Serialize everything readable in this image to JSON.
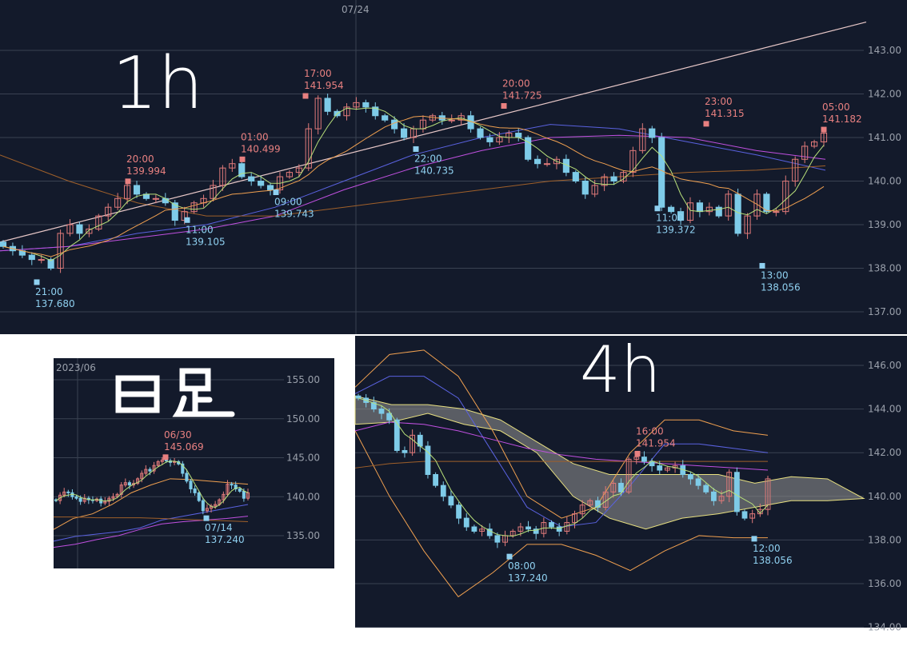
{
  "colors": {
    "background": "#131a2b",
    "grid": "#3a4252",
    "up_candle": "#e07a7a",
    "down_candle": "#7ecbe8",
    "high_label": "#e88080",
    "low_label": "#8fd0f0",
    "axis_text": "#9aa0ab",
    "ma_fast": "#b8e07a",
    "ma_mid": "#f0a050",
    "ma_blue": "#5a62e0",
    "ma_purple": "#c050e0",
    "ma_brown": "#a0602a",
    "trendline": "#e8c8c8",
    "cloud": "#8a8a8a",
    "cloud_edge": "#e8e080"
  },
  "chart_data": [
    {
      "type": "candlestick",
      "title": "1h",
      "date_label": "07/24",
      "yticks": [
        "143.00",
        "142.00",
        "141.00",
        "140.00",
        "139.00",
        "138.00",
        "137.00"
      ],
      "ylim": [
        136.6,
        144.2
      ],
      "closes": [
        138.5,
        138.4,
        138.3,
        138.2,
        138.2,
        138.0,
        138.8,
        139.0,
        138.8,
        138.9,
        139.2,
        139.4,
        139.6,
        139.9,
        139.7,
        139.6,
        139.6,
        139.5,
        139.1,
        139.3,
        139.5,
        139.6,
        139.9,
        140.3,
        140.4,
        140.1,
        140.0,
        139.9,
        139.8,
        140.1,
        140.2,
        140.3,
        141.2,
        141.9,
        141.6,
        141.5,
        141.7,
        141.8,
        141.7,
        141.5,
        141.4,
        141.2,
        141.0,
        141.2,
        141.4,
        141.5,
        141.4,
        141.4,
        141.5,
        141.2,
        141.0,
        140.9,
        141.0,
        141.1,
        141.0,
        140.5,
        140.4,
        140.4,
        140.5,
        140.2,
        140.0,
        139.7,
        139.9,
        140.1,
        140.0,
        140.2,
        140.7,
        141.2,
        141.0,
        139.4,
        139.3,
        139.1,
        139.5,
        139.3,
        139.4,
        139.2,
        139.7,
        138.8,
        139.2,
        139.7,
        139.3,
        139.3,
        140.0,
        140.5,
        140.8,
        140.9,
        141.1
      ],
      "ma_blue": [
        138.4,
        138.5,
        138.8,
        139.0,
        139.4,
        140.0,
        140.6,
        141.0,
        141.3,
        141.2,
        140.9,
        140.6,
        140.25
      ],
      "ma_purple": [
        138.4,
        138.5,
        138.7,
        138.9,
        139.2,
        139.8,
        140.3,
        140.7,
        141.0,
        141.05,
        141.0,
        140.7,
        140.5
      ],
      "ma_brown": [
        140.6,
        140.0,
        139.5,
        139.2,
        139.2,
        139.4,
        139.6,
        139.8,
        140.0,
        140.1,
        140.2,
        140.25,
        140.35
      ],
      "trendline": [
        138.6,
        143.65
      ],
      "annotations": [
        {
          "kind": "low",
          "time": "21:00",
          "price": "137.680"
        },
        {
          "kind": "high",
          "time": "20:00",
          "price": "139.994"
        },
        {
          "kind": "low",
          "time": "11:00",
          "price": "139.105"
        },
        {
          "kind": "high",
          "time": "01:00",
          "price": "140.499"
        },
        {
          "kind": "low",
          "time": "09:00",
          "price": "139.743"
        },
        {
          "kind": "high",
          "time": "17:00",
          "price": "141.954"
        },
        {
          "kind": "low",
          "time": "22:00",
          "price": "140.735"
        },
        {
          "kind": "high",
          "time": "20:00",
          "price": "141.725"
        },
        {
          "kind": "low",
          "time": "11:00",
          "price": "139.372"
        },
        {
          "kind": "high",
          "time": "23:00",
          "price": "141.315"
        },
        {
          "kind": "low",
          "time": "13:00",
          "price": "138.056"
        },
        {
          "kind": "high",
          "time": "05:00",
          "price": "141.182"
        }
      ]
    },
    {
      "type": "candlestick",
      "title": "4h",
      "yticks": [
        "146.00",
        "144.00",
        "142.00",
        "140.00",
        "138.00",
        "136.00",
        "134.00"
      ],
      "ylim": [
        134.0,
        147.0
      ],
      "closes": [
        144.5,
        144.3,
        144.0,
        143.8,
        143.5,
        142.1,
        142.0,
        142.8,
        142.3,
        141.0,
        140.5,
        140.0,
        139.6,
        139.0,
        138.6,
        138.4,
        138.5,
        138.2,
        137.9,
        138.2,
        138.4,
        138.6,
        138.5,
        138.3,
        138.8,
        138.6,
        138.4,
        138.8,
        139.2,
        139.6,
        139.8,
        139.5,
        140.2,
        140.6,
        140.2,
        141.7,
        141.8,
        141.6,
        141.4,
        141.2,
        141.3,
        141.4,
        141.0,
        140.8,
        140.5,
        140.2,
        139.8,
        140.0,
        141.1,
        139.3,
        139.0,
        139.2,
        139.4,
        140.8
      ],
      "cloud_upper": [
        144.6,
        144.2,
        144.2,
        144.0,
        143.5,
        142.5,
        141.5,
        141.0,
        141.0,
        141.0,
        141.0,
        140.6,
        140.9,
        140.8,
        139.9
      ],
      "cloud_lower": [
        143.3,
        143.4,
        143.8,
        143.3,
        143.0,
        142.0,
        140.0,
        139.0,
        138.5,
        139.0,
        139.2,
        139.5,
        139.8,
        139.8,
        139.9
      ],
      "bb_upper": [
        145.0,
        146.5,
        146.7,
        145.5,
        143.0,
        140.0,
        139.0,
        139.5,
        142.0,
        143.5,
        143.5,
        143.0,
        142.8
      ],
      "bb_mid_upper": [
        144.7,
        145.5,
        145.5,
        144.5,
        142.0,
        139.5,
        138.6,
        138.8,
        140.5,
        142.4,
        142.4,
        142.2,
        142.0
      ],
      "bb_lower": [
        143.0,
        140.0,
        137.5,
        135.4,
        136.5,
        137.8,
        137.8,
        137.3,
        136.6,
        137.5,
        138.2,
        138.1,
        138.1
      ],
      "ma_purple": [
        143.0,
        143.4,
        143.3,
        143.0,
        142.6,
        142.2,
        141.9,
        141.7,
        141.6,
        141.5,
        141.4,
        141.3,
        141.2
      ],
      "ma_brown": [
        141.3,
        141.5,
        141.6,
        141.6,
        141.6,
        141.6,
        141.6,
        141.6,
        141.6,
        141.6,
        141.6,
        141.6,
        141.6
      ],
      "annotations": [
        {
          "kind": "low",
          "time": "08:00",
          "price": "137.240"
        },
        {
          "kind": "high",
          "time": "16:00",
          "price": "141.954"
        },
        {
          "kind": "low",
          "time": "12:00",
          "price": "138.056"
        }
      ]
    },
    {
      "type": "candlestick",
      "title": "日足",
      "date_label": "2023/06",
      "yticks": [
        "155.00",
        "150.00",
        "145.00",
        "140.00",
        "135.00"
      ],
      "ylim": [
        131.0,
        158.0
      ],
      "closes": [
        139.5,
        140.2,
        140.6,
        140.5,
        140.0,
        139.8,
        139.4,
        139.8,
        139.6,
        139.5,
        139.7,
        139.2,
        139.4,
        139.8,
        140.0,
        140.3,
        141.5,
        141.8,
        141.5,
        141.7,
        142.3,
        143.0,
        143.5,
        143.3,
        144.0,
        144.5,
        144.7,
        144.6,
        144.4,
        144.5,
        144.2,
        143.0,
        142.0,
        141.0,
        140.5,
        139.5,
        138.2,
        138.5,
        138.8,
        139.0,
        139.6,
        140.3,
        141.6,
        141.5,
        141.0,
        140.7,
        139.8,
        140.5
      ],
      "ma_orange": [
        135.8,
        137.2,
        137.8,
        139.0,
        140.5,
        141.5,
        142.3,
        142.2,
        142.0,
        141.8,
        141.6
      ],
      "ma_blue": [
        134.3,
        134.9,
        135.2,
        135.5,
        136.0,
        137.0,
        137.5,
        138.0,
        138.5,
        139.0
      ],
      "ma_purple": [
        133.5,
        133.9,
        134.5,
        135.0,
        135.8,
        136.5,
        136.8,
        137.0,
        137.2,
        137.5
      ],
      "ma_brown": [
        137.4,
        137.4,
        137.3,
        137.3,
        137.3,
        137.2,
        137.1,
        137.0,
        136.9,
        136.8
      ],
      "annotations": [
        {
          "kind": "high",
          "time": "06/30",
          "price": "145.069"
        },
        {
          "kind": "low",
          "time": "07/14",
          "price": "137.240"
        }
      ]
    }
  ]
}
